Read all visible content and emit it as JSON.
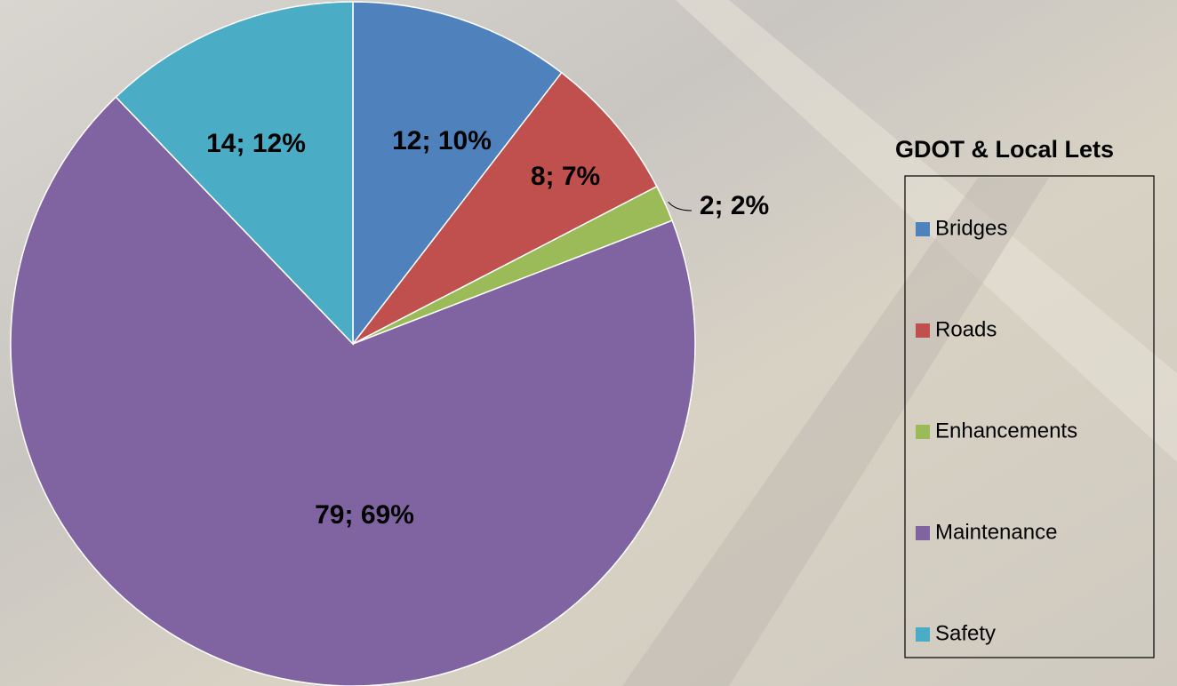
{
  "chart_data": {
    "type": "pie",
    "title": "GDOT & Local Lets",
    "categories": [
      "Bridges",
      "Roads",
      "Enhancements",
      "Maintenance",
      "Safety"
    ],
    "values": [
      12,
      8,
      2,
      79,
      14
    ],
    "value_labels": [
      "12; 10%",
      "8; 7%",
      "2; 2%",
      "79; 69%",
      "14; 12%"
    ],
    "colors": [
      "#4f81bd",
      "#c0504d",
      "#9bbb59",
      "#8064a2",
      "#4bacc6"
    ],
    "legend": "right"
  }
}
